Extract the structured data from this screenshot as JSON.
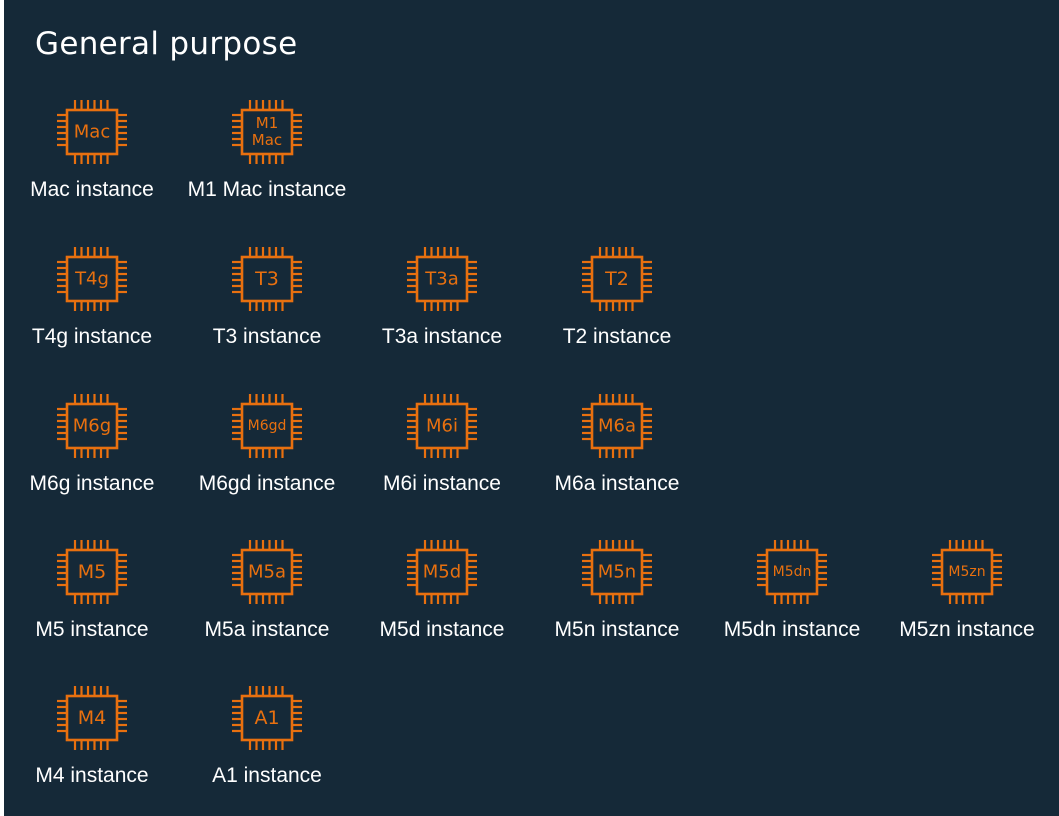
{
  "title": "General purpose",
  "colors": {
    "background": "#152938",
    "icon": "#e8700f",
    "text": "#ffffff"
  },
  "icon_name": "chip-icon",
  "rows": [
    {
      "items": [
        {
          "chip": [
            "Mac"
          ],
          "label": "Mac instance"
        },
        {
          "chip": [
            "M1",
            "Mac"
          ],
          "label": "M1 Mac instance"
        }
      ]
    },
    {
      "items": [
        {
          "chip": [
            "T4g"
          ],
          "label": "T4g instance"
        },
        {
          "chip": [
            "T3"
          ],
          "label": "T3 instance"
        },
        {
          "chip": [
            "T3a"
          ],
          "label": "T3a instance"
        },
        {
          "chip": [
            "T2"
          ],
          "label": "T2 instance"
        }
      ]
    },
    {
      "items": [
        {
          "chip": [
            "M6g"
          ],
          "label": "M6g instance"
        },
        {
          "chip": [
            "M6gd"
          ],
          "label": "M6gd instance"
        },
        {
          "chip": [
            "M6i"
          ],
          "label": "M6i instance"
        },
        {
          "chip": [
            "M6a"
          ],
          "label": "M6a instance"
        }
      ]
    },
    {
      "items": [
        {
          "chip": [
            "M5"
          ],
          "label": "M5 instance"
        },
        {
          "chip": [
            "M5a"
          ],
          "label": "M5a instance"
        },
        {
          "chip": [
            "M5d"
          ],
          "label": "M5d instance"
        },
        {
          "chip": [
            "M5n"
          ],
          "label": "M5n instance"
        },
        {
          "chip": [
            "M5dn"
          ],
          "label": "M5dn instance"
        },
        {
          "chip": [
            "M5zn"
          ],
          "label": "M5zn instance"
        }
      ]
    },
    {
      "items": [
        {
          "chip": [
            "M4"
          ],
          "label": "M4 instance"
        },
        {
          "chip": [
            "A1"
          ],
          "label": "A1 instance"
        }
      ]
    }
  ]
}
